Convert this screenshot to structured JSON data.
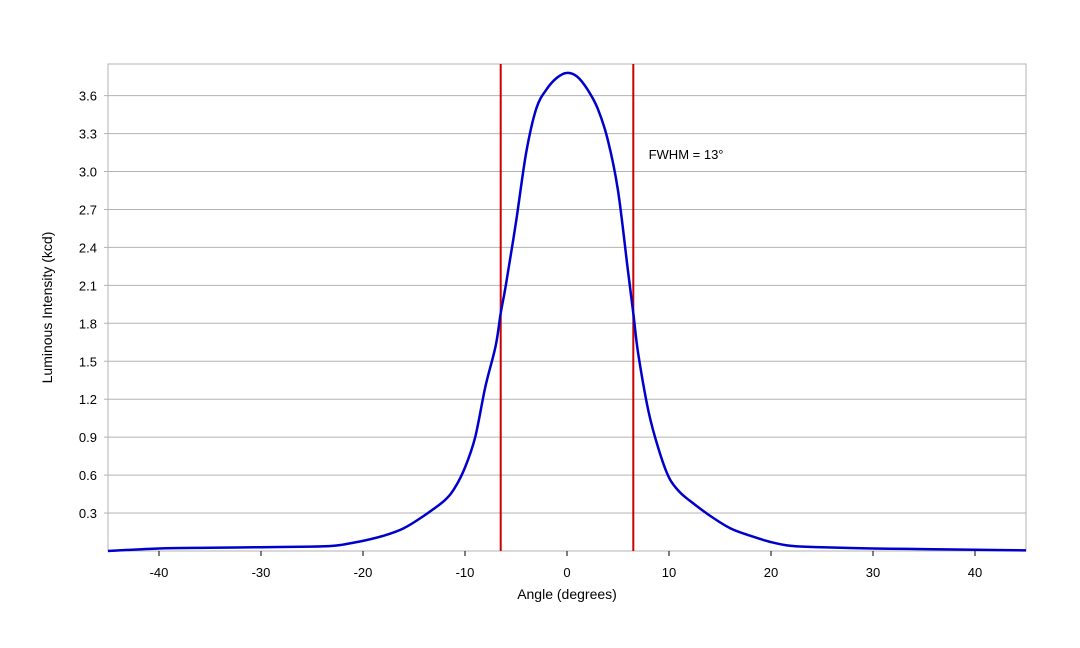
{
  "chart_data": {
    "type": "line",
    "title": "",
    "xlabel": "Angle (degrees)",
    "ylabel": "Luminous Intensity (kcd)",
    "xlim": [
      -45,
      45
    ],
    "ylim": [
      0,
      3.85
    ],
    "xticks": [
      -40,
      -30,
      -20,
      -10,
      0,
      10,
      20,
      30,
      40
    ],
    "xtick_labels": [
      "-40",
      "-30",
      "-20",
      "-10",
      "0",
      "10",
      "20",
      "30",
      "40"
    ],
    "yticks": [
      0.3,
      0.6,
      0.9,
      1.2,
      1.5,
      1.8,
      2.1,
      2.4,
      2.7,
      3.0,
      3.3,
      3.6
    ],
    "ytick_labels": [
      "0.3",
      "0.6",
      "0.9",
      "1.2",
      "1.5",
      "1.8",
      "2.1",
      "2.4",
      "2.7",
      "3.0",
      "3.3",
      "3.6"
    ],
    "grid": true,
    "series": [
      {
        "color": "#0000cc",
        "x": [
          -45,
          -40,
          -35,
          -30,
          -25,
          -23,
          -22,
          -20,
          -18,
          -16,
          -14,
          -12,
          -11,
          -10,
          -9,
          -8,
          -7,
          -6.5,
          -6,
          -5,
          -4,
          -3,
          -2,
          -1,
          0,
          1,
          2,
          3,
          4,
          5,
          6,
          6.5,
          7,
          8,
          9,
          10,
          11,
          12,
          14,
          16,
          18,
          20,
          22,
          25,
          30,
          35,
          40,
          45
        ],
        "y": [
          0.0,
          0.02,
          0.025,
          0.03,
          0.035,
          0.04,
          0.05,
          0.08,
          0.12,
          0.18,
          0.28,
          0.4,
          0.5,
          0.66,
          0.9,
          1.3,
          1.62,
          1.88,
          2.1,
          2.6,
          3.15,
          3.5,
          3.65,
          3.74,
          3.78,
          3.75,
          3.65,
          3.5,
          3.25,
          2.85,
          2.2,
          1.88,
          1.55,
          1.1,
          0.8,
          0.58,
          0.47,
          0.4,
          0.28,
          0.18,
          0.12,
          0.07,
          0.04,
          0.03,
          0.02,
          0.015,
          0.01,
          0.005
        ]
      }
    ],
    "vertical_lines": [
      {
        "x": -6.5,
        "color": "#cc0000"
      },
      {
        "x": 6.5,
        "color": "#cc0000"
      }
    ],
    "annotations": [
      {
        "text": "FWHM = 13°",
        "x": 8,
        "y": 3.1
      }
    ],
    "colors": {
      "grid": "#b3b3b3",
      "frame": "#b3b3b3",
      "axis": "#000000"
    }
  }
}
